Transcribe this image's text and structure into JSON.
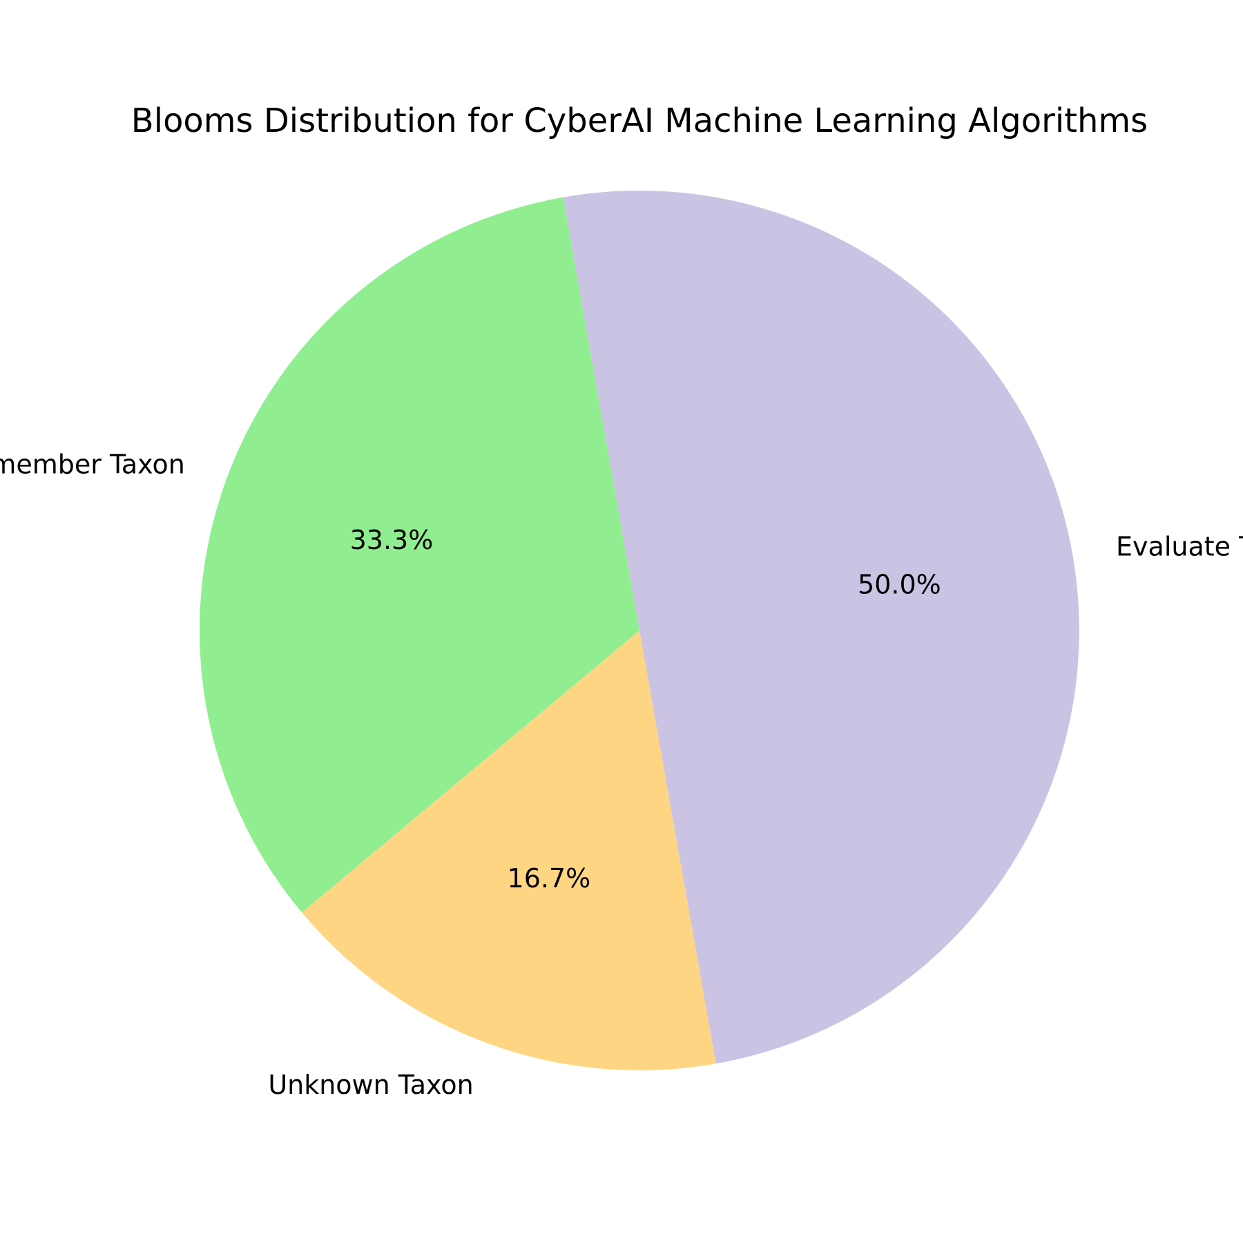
{
  "chart_data": {
    "type": "pie",
    "title": "Blooms Distribution for CyberAI Machine Learning Algorithms",
    "slices": [
      {
        "label": "Evaluate Taxon",
        "value": 50.0,
        "pct_label": "50.0%",
        "color": "#cbc3e3"
      },
      {
        "label": "Remember Taxon",
        "value": 33.3,
        "pct_label": "33.3%",
        "color": "#90ee90"
      },
      {
        "label": "Unknown Taxon",
        "value": 16.7,
        "pct_label": "16.7%",
        "color": "#fed683"
      }
    ],
    "start_angle_deg": -80,
    "direction": "counterclockwise",
    "legend": "none"
  }
}
